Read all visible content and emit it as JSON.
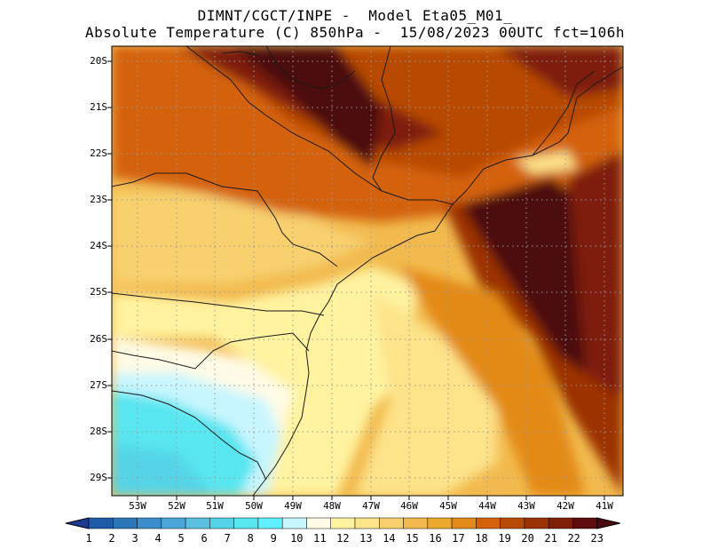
{
  "title_line1": "DIMNT/CGCT/INPE -  Model Eta05_M01_",
  "title_line2": "Absolute Temperature (C) 850hPa -  15/08/2023 00UTC fct=106h",
  "lat_labels": [
    "20S",
    "21S",
    "22S",
    "23S",
    "24S",
    "25S",
    "26S",
    "27S",
    "28S",
    "29S"
  ],
  "lon_labels": [
    "53W",
    "52W",
    "51W",
    "50W",
    "49W",
    "48W",
    "47W",
    "46W",
    "45W",
    "44W",
    "43W",
    "42W",
    "41W"
  ],
  "colorbar": {
    "labels": [
      "1",
      "2",
      "3",
      "4",
      "5",
      "6",
      "7",
      "8",
      "9",
      "10",
      "11",
      "12",
      "13",
      "14",
      "15",
      "16",
      "17",
      "18",
      "19",
      "20",
      "21",
      "22",
      "23"
    ],
    "colors": [
      "#1f3a93",
      "#1f5aa6",
      "#2a77b8",
      "#3a8ecb",
      "#4aa6d8",
      "#5cc0e0",
      "#55d4e8",
      "#58e6f0",
      "#60f0ff",
      "#c8f6ff",
      "#fffbe6",
      "#fff3a0",
      "#fde38a",
      "#f8d06e",
      "#f2ba4e",
      "#ebaa2e",
      "#e38a18",
      "#d4620a",
      "#b84a06",
      "#9b3205",
      "#7e1f08",
      "#5e0e0e",
      "#4b0a0f"
    ]
  }
}
